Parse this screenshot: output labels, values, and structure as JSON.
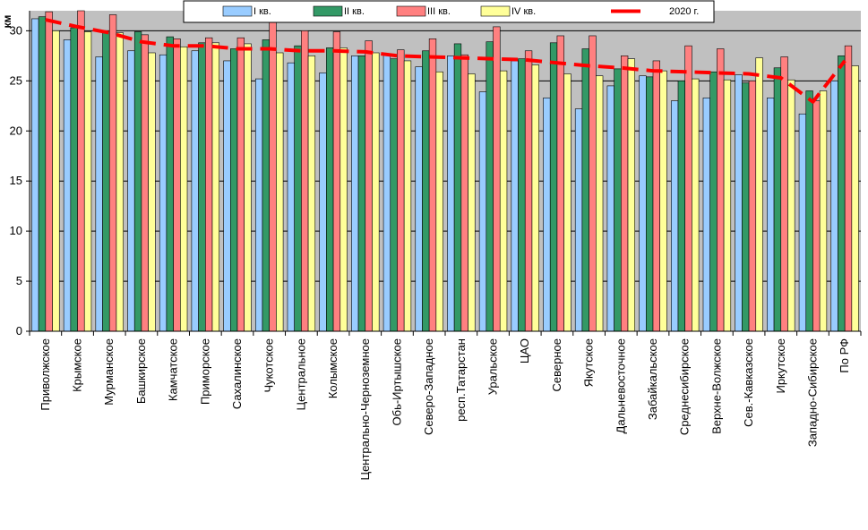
{
  "chart_data": {
    "type": "bar",
    "ylabel": "км",
    "ylim": [
      0,
      32
    ],
    "yticks": [
      0,
      5,
      10,
      15,
      20,
      25,
      30
    ],
    "grid": true,
    "legend_position": "top",
    "categories": [
      "Приволжское",
      "Крымское",
      "Мурманское",
      "Башкирское",
      "Камчатское",
      "Приморское",
      "Сахалинское",
      "Чукотское",
      "Центральное",
      "Колымское",
      "Центрально-Черноземное",
      "Обь-Иртышское",
      "Северо-Западное",
      "респ.Татарстан",
      "Уральское",
      "ЦАО",
      "Северное",
      "Якутское",
      "Дальневосточное",
      "Забайкальское",
      "Среднесибирское",
      "Верхне-Волжское",
      "Сев.-Кавказское",
      "Иркутское",
      "Западно-Сибирское",
      "По РФ"
    ],
    "series": [
      {
        "name": "I кв.",
        "color": "#99CCFF",
        "values": [
          31.2,
          29.1,
          27.4,
          28.0,
          27.6,
          28.0,
          27.0,
          25.2,
          26.8,
          25.8,
          27.5,
          27.6,
          26.4,
          27.5,
          23.9,
          27.0,
          23.3,
          22.2,
          24.5,
          25.5,
          23.0,
          23.3,
          25.6,
          23.3,
          21.7,
          25.0
        ]
      },
      {
        "name": "II кв.",
        "color": "#339966",
        "values": [
          31.4,
          30.3,
          30.0,
          29.9,
          29.4,
          28.8,
          28.2,
          29.1,
          28.5,
          28.3,
          27.5,
          27.2,
          28.0,
          28.7,
          28.9,
          27.2,
          28.8,
          28.2,
          26.2,
          25.4,
          25.0,
          25.9,
          24.8,
          26.3,
          24.0,
          27.5
        ]
      },
      {
        "name": "III кв.",
        "color": "#FF8080",
        "values": [
          31.9,
          32.0,
          31.6,
          29.6,
          29.2,
          29.3,
          29.3,
          31.1,
          30.0,
          29.9,
          29.0,
          28.1,
          29.2,
          27.6,
          30.4,
          28.0,
          29.5,
          29.5,
          27.5,
          27.0,
          28.5,
          28.2,
          25.0,
          27.4,
          23.0,
          28.5
        ]
      },
      {
        "name": "IV кв.",
        "color": "#FFFF99",
        "values": [
          30.0,
          29.9,
          29.8,
          27.8,
          28.4,
          28.8,
          28.7,
          27.8,
          27.5,
          28.3,
          27.8,
          27.0,
          25.9,
          25.7,
          26.0,
          26.6,
          25.7,
          25.5,
          27.2,
          26.0,
          25.2,
          25.1,
          27.3,
          25.1,
          24.0,
          26.5
        ]
      }
    ],
    "line": {
      "name": "2020 г.",
      "color": "#FF0000",
      "values": [
        31.1,
        30.4,
        29.8,
        28.9,
        28.5,
        28.5,
        28.2,
        28.2,
        28.0,
        28.0,
        27.9,
        27.5,
        27.4,
        27.3,
        27.2,
        27.1,
        26.8,
        26.5,
        26.3,
        26.0,
        25.9,
        25.8,
        25.7,
        25.3,
        22.9,
        27.0
      ]
    }
  }
}
